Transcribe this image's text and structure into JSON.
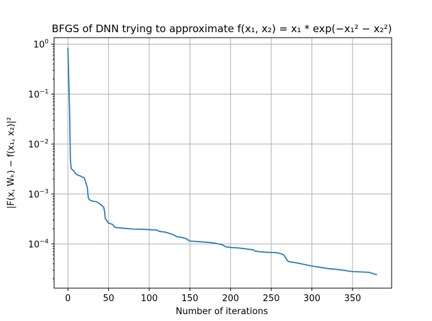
{
  "chart_data": {
    "type": "line",
    "title": "BFGS of DNN trying to approximate f(x₁, x₂) = x₁ * exp(−x₁² − x₂²)",
    "xlabel": "Number of iterations",
    "ylabel": "|F(x, Wₖ) − f(x₁, x₂)|²",
    "xlim": [
      -17,
      398
    ],
    "ylim": [
      1.3e-05,
      1.35
    ],
    "yscale": "log",
    "grid": true,
    "xticks": [
      0,
      50,
      100,
      150,
      200,
      250,
      300,
      350
    ],
    "xtick_labels": [
      "0",
      "50",
      "100",
      "150",
      "200",
      "250",
      "300",
      "350"
    ],
    "yticks": [
      1,
      0.1,
      0.01,
      0.001,
      0.0001
    ],
    "ytick_labels": [
      {
        "base": "10",
        "exp": "0"
      },
      {
        "base": "10",
        "exp": "−1"
      },
      {
        "base": "10",
        "exp": "−2"
      },
      {
        "base": "10",
        "exp": "−3"
      },
      {
        "base": "10",
        "exp": "−4"
      }
    ],
    "series": [
      {
        "color": "#1f77b4",
        "x": [
          0,
          1,
          2,
          3,
          4,
          5,
          8,
          10,
          12,
          15,
          20,
          22,
          23,
          24,
          25,
          26,
          28,
          30,
          35,
          40,
          43,
          44,
          45,
          46,
          48,
          50,
          52,
          55,
          57,
          58,
          60,
          65,
          70,
          80,
          90,
          100,
          110,
          112,
          115,
          120,
          125,
          130,
          133,
          135,
          140,
          145,
          150,
          160,
          170,
          180,
          185,
          190,
          193,
          195,
          200,
          210,
          215,
          220,
          225,
          228,
          230,
          233,
          235,
          240,
          245,
          250,
          255,
          260,
          265,
          268,
          270,
          272,
          274,
          276,
          280,
          285,
          290,
          295,
          300,
          305,
          310,
          315,
          320,
          330,
          340,
          345,
          350,
          360,
          370,
          375,
          380
        ],
        "y": [
          0.85,
          0.2,
          0.05,
          0.005,
          0.0033,
          0.0031,
          0.0028,
          0.0025,
          0.0024,
          0.0023,
          0.0021,
          0.0017,
          0.0015,
          0.0013,
          0.00085,
          0.00078,
          0.00074,
          0.00072,
          0.0007,
          0.00062,
          0.00056,
          0.00054,
          0.00045,
          0.00032,
          0.00029,
          0.00026,
          0.000255,
          0.000245,
          0.00022,
          0.000215,
          0.000212,
          0.000208,
          0.000205,
          0.000198,
          0.000196,
          0.000193,
          0.000188,
          0.000178,
          0.000176,
          0.000172,
          0.000162,
          0.000152,
          0.000142,
          0.000138,
          0.000135,
          0.000128,
          0.000114,
          0.000111,
          0.000108,
          0.000104,
          0.0001,
          9.6e-05,
          8.9e-05,
          8.7e-05,
          8.5e-05,
          8.3e-05,
          8.1e-05,
          7.9e-05,
          7.7e-05,
          7.6e-05,
          7.2e-05,
          7.05e-05,
          7e-05,
          6.9e-05,
          6.8e-05,
          6.75e-05,
          6.7e-05,
          6.5e-05,
          6.1e-05,
          5.2e-05,
          4.6e-05,
          4.4e-05,
          4.35e-05,
          4.3e-05,
          4.2e-05,
          4.05e-05,
          3.9e-05,
          3.75e-05,
          3.6e-05,
          3.5e-05,
          3.4e-05,
          3.3e-05,
          3.2e-05,
          3.1e-05,
          2.95e-05,
          2.85e-05,
          2.8e-05,
          2.75e-05,
          2.7e-05,
          2.55e-05,
          2.4e-05
        ]
      }
    ]
  }
}
